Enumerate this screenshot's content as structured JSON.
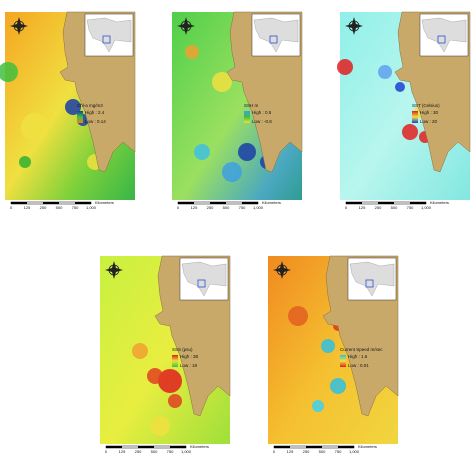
{
  "panels": [
    {
      "legend_title": "Chl-a mg/m3",
      "high": "High : 2.4",
      "low": "Low : 0.14"
    },
    {
      "legend_title": "SSH m",
      "high": "High : 0.5",
      "low": "Low : -0.8"
    },
    {
      "legend_title": "SST (Celsius)",
      "high": "High : 30",
      "low": "Low : 20"
    },
    {
      "legend_title": "SSS (psu)",
      "high": "High : 38",
      "low": "Low : 18"
    },
    {
      "legend_title": "Current Speed m/sec",
      "high": "High : 1.6",
      "low": "Low : 0.01"
    }
  ],
  "scale_labels": [
    "0",
    "125",
    "250",
    "500",
    "750",
    "1,000"
  ],
  "scale_unit": "Kilometers"
}
